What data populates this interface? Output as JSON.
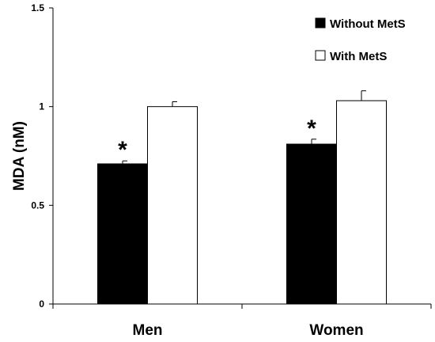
{
  "chart_data": {
    "type": "bar",
    "title": "",
    "xlabel": "",
    "ylabel": "MDA (nM)",
    "ylim": [
      0,
      1.5
    ],
    "yticks": [
      0,
      0.5,
      1,
      1.5
    ],
    "ytick_labels": [
      "0",
      "0.5",
      "1",
      "1.5"
    ],
    "categories": [
      "Men",
      "Women"
    ],
    "series": [
      {
        "name": "Without MetS",
        "color": "#000000",
        "values": [
          0.71,
          0.81
        ],
        "errors": [
          0.015,
          0.025
        ],
        "annotations": [
          "*",
          "*"
        ]
      },
      {
        "name": "With MetS",
        "color": "#ffffff",
        "values": [
          1.0,
          1.03
        ],
        "errors": [
          0.025,
          0.05
        ],
        "annotations": [
          "",
          ""
        ]
      }
    ],
    "legend": {
      "position": "top-right"
    },
    "grid": false
  }
}
